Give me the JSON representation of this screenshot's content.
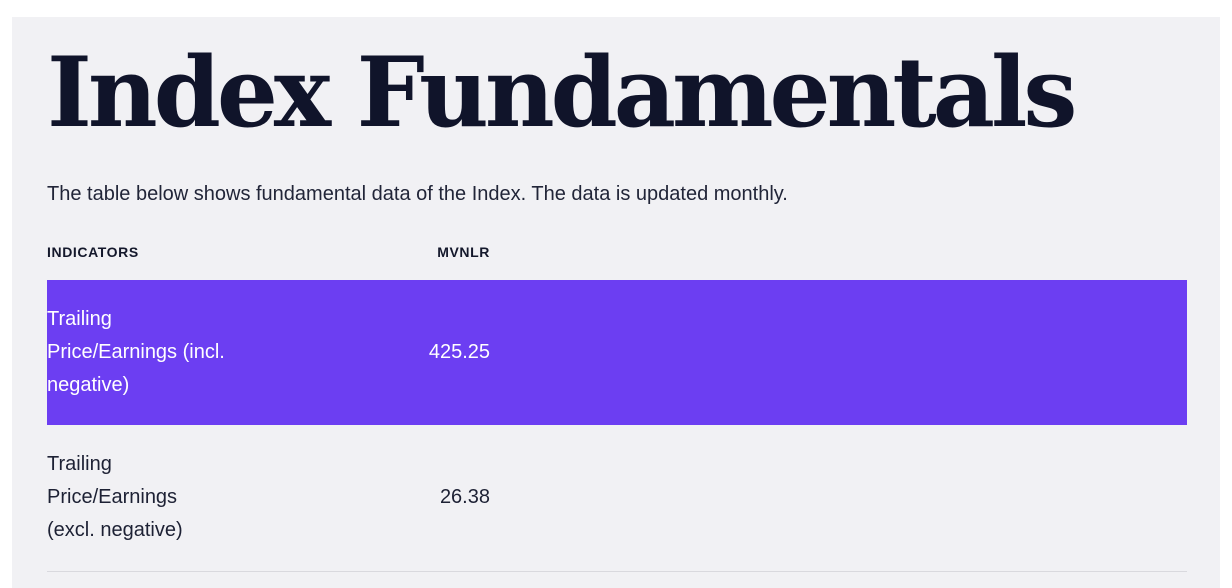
{
  "page": {
    "title": "Index Fundamentals",
    "description": "The table below shows fundamental data of the Index. The data is updated monthly."
  },
  "table": {
    "columns": [
      {
        "label": "INDICATORS"
      },
      {
        "label": "MVNLR"
      }
    ],
    "rows": [
      {
        "indicator": "Trailing\nPrice/Earnings (incl.\nnegative)",
        "value": "425.25",
        "highlighted": true
      },
      {
        "indicator": "Trailing\nPrice/Earnings\n(excl. negative)",
        "value": "26.38",
        "highlighted": false
      }
    ]
  },
  "colors": {
    "highlight_purple": "#6c3ef2",
    "panel_background": "#f1f1f4",
    "text_dark": "#1d2134",
    "divider": "#d9d9de",
    "highlight_text": "#ffffff"
  }
}
